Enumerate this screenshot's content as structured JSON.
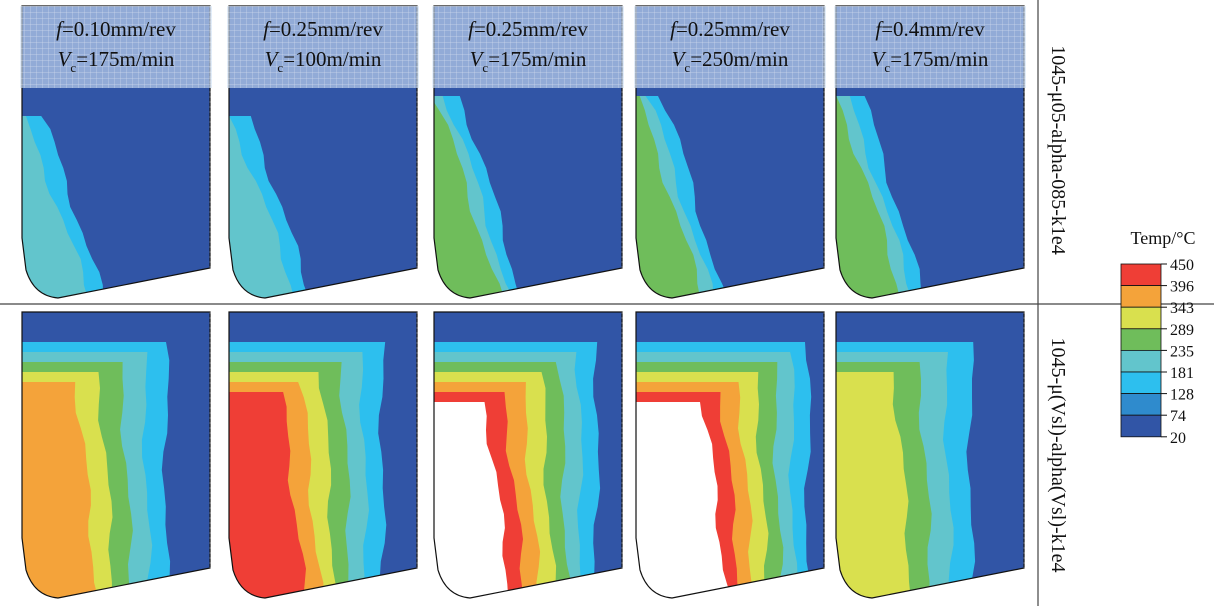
{
  "colors": {
    "c20": "#3155a6",
    "c74": "#2f8bcd",
    "c128": "#2dbfee",
    "c181": "#62c5cc",
    "c235": "#6fbd5b",
    "c289": "#d9e04e",
    "c343": "#f4a33a",
    "c396": "#ef3e36",
    "c450": "#ffffff",
    "overlay": "#cfe0f5"
  },
  "panels": [
    {
      "f_prefix": "f",
      "f_value": "=0.10mm/rev",
      "v_prefix": "V",
      "v_sub": "c",
      "v_value": "=175m/min"
    },
    {
      "f_prefix": "f",
      "f_value": "=0.25mm/rev",
      "v_prefix": "V",
      "v_sub": "c",
      "v_value": "=100m/min"
    },
    {
      "f_prefix": "f",
      "f_value": "=0.25mm/rev",
      "v_prefix": "V",
      "v_sub": "c",
      "v_value": "=175m/min"
    },
    {
      "f_prefix": "f",
      "f_value": "=0.25mm/rev",
      "v_prefix": "V",
      "v_sub": "c",
      "v_value": "=250m/min"
    },
    {
      "f_prefix": "f",
      "f_value": "=0.4mm/rev",
      "v_prefix": "V",
      "v_sub": "c",
      "v_value": "=175m/min"
    }
  ],
  "rows": [
    {
      "label": "1045-μ05-alpha-085-k1e4",
      "intensity": [
        2,
        2,
        3,
        3,
        3
      ]
    },
    {
      "label": "1045-μ(Vsl)-alpha(Vsl)-k1e4",
      "intensity": [
        5,
        6,
        7,
        8,
        4
      ]
    }
  ],
  "legend": {
    "title": "Temp/°C",
    "ticks": [
      "450",
      "396",
      "343",
      "289",
      "235",
      "181",
      "128",
      "74",
      "20"
    ]
  }
}
